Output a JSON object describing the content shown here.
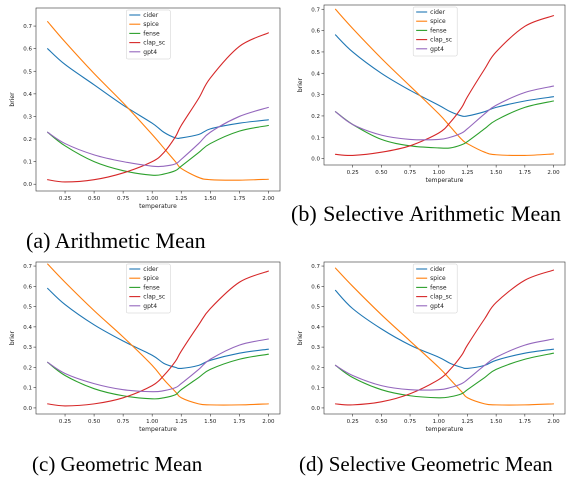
{
  "captions": {
    "a": "(a) Arithmetic Mean",
    "b": "(b) Selective Arithmetic Mean",
    "c": "(c) Geometric Mean",
    "d": "(d) Selective Geometric Mean"
  },
  "colors": {
    "cider": "#1f77b4",
    "spice": "#ff7f0e",
    "fense": "#2ca02c",
    "clap_sc": "#d62728",
    "gpt4": "#9467bd"
  },
  "chart_data": [
    {
      "id": "a",
      "type": "line",
      "title": "",
      "xlabel": "temperature",
      "ylabel": "brier",
      "xlim": [
        0.0,
        2.1
      ],
      "ylim": [
        -0.03,
        0.78
      ],
      "xticks": [
        "0.25",
        "0.50",
        "0.75",
        "1.00",
        "1.25",
        "1.50",
        "1.75",
        "2.00"
      ],
      "yticks": [
        "0.0",
        "0.1",
        "0.2",
        "0.3",
        "0.4",
        "0.5",
        "0.6",
        "0.7"
      ],
      "grid": false,
      "legend": "top-center",
      "x": [
        0.1,
        0.25,
        0.5,
        0.75,
        1.0,
        1.1,
        1.2,
        1.25,
        1.4,
        1.5,
        1.75,
        2.0
      ],
      "series": [
        {
          "name": "cider",
          "values": [
            0.6,
            0.53,
            0.44,
            0.35,
            0.27,
            0.23,
            0.205,
            0.205,
            0.22,
            0.245,
            0.27,
            0.285
          ]
        },
        {
          "name": "spice",
          "values": [
            0.72,
            0.63,
            0.49,
            0.36,
            0.22,
            0.16,
            0.1,
            0.07,
            0.03,
            0.02,
            0.018,
            0.022
          ]
        },
        {
          "name": "fense",
          "values": [
            0.23,
            0.17,
            0.1,
            0.06,
            0.04,
            0.045,
            0.06,
            0.08,
            0.14,
            0.18,
            0.235,
            0.26
          ]
        },
        {
          "name": "clap_sc",
          "values": [
            0.02,
            0.01,
            0.02,
            0.05,
            0.1,
            0.14,
            0.21,
            0.26,
            0.38,
            0.47,
            0.61,
            0.67
          ]
        },
        {
          "name": "gpt4",
          "values": [
            0.23,
            0.18,
            0.13,
            0.1,
            0.08,
            0.08,
            0.09,
            0.11,
            0.18,
            0.23,
            0.3,
            0.34
          ]
        }
      ]
    },
    {
      "id": "b",
      "type": "line",
      "title": "",
      "xlabel": "temperature",
      "ylabel": "brier",
      "xlim": [
        0.0,
        2.1
      ],
      "ylim": [
        -0.03,
        0.72
      ],
      "xticks": [
        "0.25",
        "0.50",
        "0.75",
        "1.00",
        "1.25",
        "1.50",
        "1.75",
        "2.00"
      ],
      "yticks": [
        "0.0",
        "0.1",
        "0.2",
        "0.3",
        "0.4",
        "0.5",
        "0.6",
        "0.7"
      ],
      "grid": false,
      "legend": "top-center",
      "x": [
        0.1,
        0.25,
        0.5,
        0.75,
        1.0,
        1.1,
        1.2,
        1.25,
        1.4,
        1.5,
        1.75,
        2.0
      ],
      "series": [
        {
          "name": "cider",
          "values": [
            0.58,
            0.5,
            0.4,
            0.32,
            0.25,
            0.22,
            0.2,
            0.2,
            0.22,
            0.24,
            0.27,
            0.29
          ]
        },
        {
          "name": "spice",
          "values": [
            0.7,
            0.61,
            0.47,
            0.34,
            0.21,
            0.15,
            0.09,
            0.07,
            0.03,
            0.018,
            0.015,
            0.022
          ]
        },
        {
          "name": "fense",
          "values": [
            0.22,
            0.16,
            0.09,
            0.06,
            0.05,
            0.05,
            0.065,
            0.08,
            0.14,
            0.18,
            0.24,
            0.27
          ]
        },
        {
          "name": "clap_sc",
          "values": [
            0.02,
            0.015,
            0.03,
            0.06,
            0.12,
            0.17,
            0.24,
            0.29,
            0.42,
            0.5,
            0.62,
            0.67
          ]
        },
        {
          "name": "gpt4",
          "values": [
            0.22,
            0.16,
            0.11,
            0.09,
            0.09,
            0.1,
            0.12,
            0.14,
            0.21,
            0.25,
            0.31,
            0.34
          ]
        }
      ]
    },
    {
      "id": "c",
      "type": "line",
      "title": "",
      "xlabel": "temperature",
      "ylabel": "brier",
      "xlim": [
        0.0,
        2.1
      ],
      "ylim": [
        -0.03,
        0.72
      ],
      "xticks": [
        "0.25",
        "0.50",
        "0.75",
        "1.00",
        "1.25",
        "1.50",
        "1.75",
        "2.00"
      ],
      "yticks": [
        "0.0",
        "0.1",
        "0.2",
        "0.3",
        "0.4",
        "0.5",
        "0.6",
        "0.7"
      ],
      "grid": false,
      "legend": "top-center",
      "x": [
        0.1,
        0.25,
        0.5,
        0.75,
        1.0,
        1.1,
        1.2,
        1.25,
        1.4,
        1.5,
        1.75,
        2.0
      ],
      "series": [
        {
          "name": "cider",
          "values": [
            0.59,
            0.51,
            0.41,
            0.33,
            0.26,
            0.22,
            0.2,
            0.195,
            0.21,
            0.235,
            0.27,
            0.29
          ]
        },
        {
          "name": "spice",
          "values": [
            0.71,
            0.62,
            0.48,
            0.35,
            0.21,
            0.14,
            0.08,
            0.05,
            0.02,
            0.015,
            0.015,
            0.02
          ]
        },
        {
          "name": "fense",
          "values": [
            0.225,
            0.16,
            0.095,
            0.06,
            0.045,
            0.05,
            0.065,
            0.09,
            0.15,
            0.19,
            0.24,
            0.265
          ]
        },
        {
          "name": "clap_sc",
          "values": [
            0.02,
            0.01,
            0.02,
            0.05,
            0.11,
            0.16,
            0.23,
            0.28,
            0.41,
            0.49,
            0.62,
            0.675
          ]
        },
        {
          "name": "gpt4",
          "values": [
            0.225,
            0.17,
            0.12,
            0.09,
            0.08,
            0.085,
            0.1,
            0.12,
            0.19,
            0.24,
            0.31,
            0.34
          ]
        }
      ]
    },
    {
      "id": "d",
      "type": "line",
      "title": "",
      "xlabel": "temperature",
      "ylabel": "brier",
      "xlim": [
        0.0,
        2.1
      ],
      "ylim": [
        -0.03,
        0.72
      ],
      "xticks": [
        "0.25",
        "0.50",
        "0.75",
        "1.00",
        "1.25",
        "1.50",
        "1.75",
        "2.00"
      ],
      "yticks": [
        "0.0",
        "0.1",
        "0.2",
        "0.3",
        "0.4",
        "0.5",
        "0.6",
        "0.7"
      ],
      "grid": false,
      "legend": "top-center",
      "x": [
        0.1,
        0.25,
        0.5,
        0.75,
        1.0,
        1.1,
        1.2,
        1.25,
        1.4,
        1.5,
        1.75,
        2.0
      ],
      "series": [
        {
          "name": "cider",
          "values": [
            0.58,
            0.49,
            0.39,
            0.31,
            0.25,
            0.22,
            0.2,
            0.195,
            0.21,
            0.235,
            0.27,
            0.29
          ]
        },
        {
          "name": "spice",
          "values": [
            0.69,
            0.6,
            0.46,
            0.33,
            0.2,
            0.14,
            0.08,
            0.05,
            0.02,
            0.015,
            0.015,
            0.02
          ]
        },
        {
          "name": "fense",
          "values": [
            0.21,
            0.15,
            0.09,
            0.06,
            0.05,
            0.055,
            0.07,
            0.09,
            0.15,
            0.19,
            0.24,
            0.27
          ]
        },
        {
          "name": "clap_sc",
          "values": [
            0.02,
            0.015,
            0.03,
            0.07,
            0.14,
            0.19,
            0.26,
            0.31,
            0.44,
            0.52,
            0.63,
            0.68
          ]
        },
        {
          "name": "gpt4",
          "values": [
            0.21,
            0.16,
            0.11,
            0.09,
            0.09,
            0.1,
            0.12,
            0.14,
            0.21,
            0.25,
            0.31,
            0.34
          ]
        }
      ]
    }
  ]
}
